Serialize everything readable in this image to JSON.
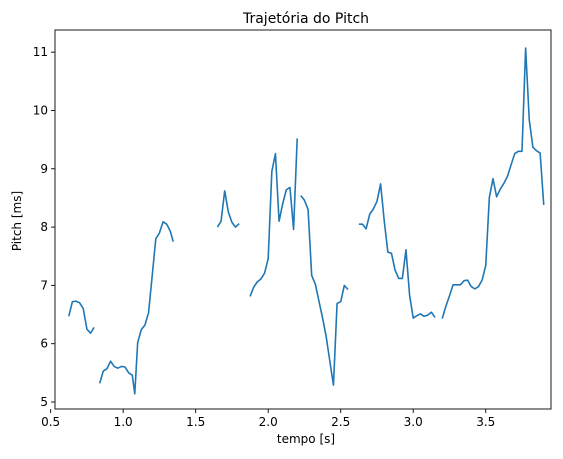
{
  "chart_data": {
    "type": "line",
    "title": "Trajetória do Pitch",
    "xlabel": "tempo [s]",
    "ylabel": "Pitch [ms]",
    "xlim": [
      0.53,
      3.95
    ],
    "ylim": [
      4.88,
      11.38
    ],
    "xticks": [
      0.5,
      1.0,
      1.5,
      2.0,
      2.5,
      3.0,
      3.5
    ],
    "xtick_labels": [
      "0.5",
      "1.0",
      "1.5",
      "2.0",
      "2.5",
      "3.0",
      "3.5"
    ],
    "yticks": [
      5,
      6,
      7,
      8,
      9,
      10,
      11
    ],
    "ytick_labels": [
      "5",
      "6",
      "7",
      "8",
      "9",
      "10",
      "11"
    ],
    "grid": false,
    "line_color": "#1f77b4",
    "series": [
      {
        "segments": [
          [
            [
              0.625,
              6.47
            ],
            [
              0.65,
              6.72
            ],
            [
              0.675,
              6.73
            ],
            [
              0.7,
              6.7
            ],
            [
              0.725,
              6.6
            ],
            [
              0.75,
              6.25
            ],
            [
              0.775,
              6.18
            ],
            [
              0.8,
              6.28
            ]
          ],
          [
            [
              0.838,
              5.32
            ],
            [
              0.863,
              5.53
            ],
            [
              0.888,
              5.57
            ],
            [
              0.913,
              5.7
            ],
            [
              0.938,
              5.61
            ],
            [
              0.963,
              5.58
            ],
            [
              0.988,
              5.61
            ],
            [
              1.013,
              5.6
            ],
            [
              1.038,
              5.5
            ],
            [
              1.063,
              5.46
            ],
            [
              1.08,
              5.14
            ],
            [
              1.1,
              6.02
            ],
            [
              1.125,
              6.24
            ],
            [
              1.15,
              6.32
            ],
            [
              1.175,
              6.53
            ],
            [
              1.2,
              7.16
            ],
            [
              1.225,
              7.8
            ],
            [
              1.25,
              7.9
            ],
            [
              1.275,
              8.09
            ],
            [
              1.3,
              8.05
            ],
            [
              1.325,
              7.93
            ],
            [
              1.345,
              7.75
            ]
          ],
          [
            [
              1.65,
              8.0
            ],
            [
              1.675,
              8.1
            ],
            [
              1.7,
              8.62
            ],
            [
              1.725,
              8.26
            ],
            [
              1.75,
              8.08
            ],
            [
              1.775,
              8.0
            ],
            [
              1.8,
              8.06
            ]
          ],
          [
            [
              1.875,
              6.81
            ],
            [
              1.9,
              6.97
            ],
            [
              1.925,
              7.06
            ],
            [
              1.95,
              7.11
            ],
            [
              1.975,
              7.21
            ],
            [
              2.0,
              7.46
            ],
            [
              2.025,
              8.95
            ],
            [
              2.05,
              9.26
            ],
            [
              2.075,
              8.1
            ],
            [
              2.1,
              8.4
            ],
            [
              2.125,
              8.64
            ],
            [
              2.15,
              8.68
            ],
            [
              2.175,
              7.96
            ],
            [
              2.2,
              9.52
            ]
          ],
          [
            [
              2.225,
              8.54
            ],
            [
              2.25,
              8.46
            ],
            [
              2.275,
              8.3
            ],
            [
              2.3,
              7.17
            ],
            [
              2.325,
              7.02
            ],
            [
              2.35,
              6.73
            ],
            [
              2.375,
              6.44
            ],
            [
              2.4,
              6.12
            ],
            [
              2.425,
              5.7
            ],
            [
              2.45,
              5.29
            ],
            [
              2.475,
              6.69
            ],
            [
              2.5,
              6.72
            ],
            [
              2.525,
              7.0
            ],
            [
              2.55,
              6.93
            ]
          ],
          [
            [
              2.625,
              8.05
            ],
            [
              2.65,
              8.05
            ],
            [
              2.675,
              7.97
            ],
            [
              2.7,
              8.22
            ],
            [
              2.725,
              8.31
            ],
            [
              2.75,
              8.44
            ],
            [
              2.775,
              8.74
            ],
            [
              2.8,
              8.11
            ],
            [
              2.825,
              7.57
            ],
            [
              2.85,
              7.55
            ],
            [
              2.875,
              7.26
            ],
            [
              2.9,
              7.12
            ],
            [
              2.925,
              7.12
            ],
            [
              2.95,
              7.61
            ],
            [
              2.975,
              6.83
            ],
            [
              3.0,
              6.44
            ],
            [
              3.025,
              6.48
            ],
            [
              3.05,
              6.51
            ],
            [
              3.075,
              6.47
            ],
            [
              3.1,
              6.49
            ],
            [
              3.125,
              6.54
            ],
            [
              3.15,
              6.45
            ]
          ],
          [
            [
              3.2,
              6.43
            ],
            [
              3.225,
              6.64
            ],
            [
              3.25,
              6.82
            ],
            [
              3.275,
              7.01
            ],
            [
              3.3,
              7.01
            ],
            [
              3.325,
              7.01
            ],
            [
              3.35,
              7.08
            ],
            [
              3.375,
              7.09
            ],
            [
              3.4,
              6.98
            ],
            [
              3.425,
              6.94
            ],
            [
              3.45,
              6.98
            ],
            [
              3.475,
              7.09
            ],
            [
              3.5,
              7.34
            ],
            [
              3.525,
              8.51
            ],
            [
              3.55,
              8.83
            ],
            [
              3.575,
              8.52
            ],
            [
              3.6,
              8.65
            ],
            [
              3.625,
              8.75
            ],
            [
              3.65,
              8.87
            ],
            [
              3.675,
              9.07
            ],
            [
              3.7,
              9.26
            ],
            [
              3.725,
              9.3
            ],
            [
              3.75,
              9.3
            ],
            [
              3.775,
              11.07
            ],
            [
              3.8,
              9.84
            ],
            [
              3.825,
              9.37
            ],
            [
              3.85,
              9.31
            ],
            [
              3.875,
              9.27
            ],
            [
              3.9,
              8.38
            ]
          ]
        ]
      }
    ]
  }
}
